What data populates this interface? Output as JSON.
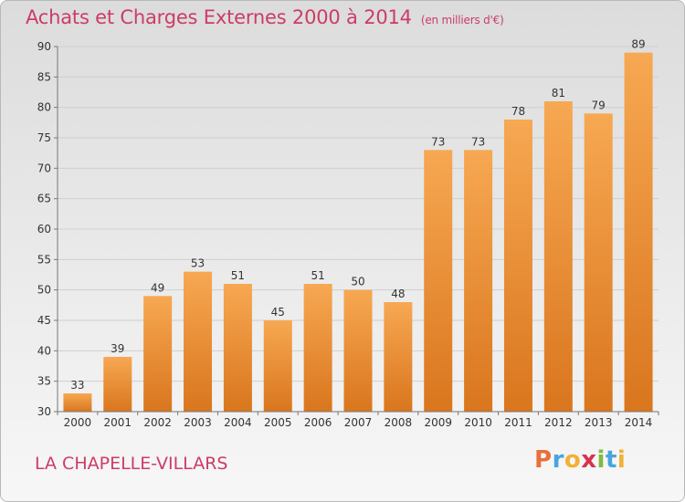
{
  "title": "Achats et Charges Externes 2000 à 2014",
  "unit_note": "(en milliers d'€)",
  "place_name": "LA CHAPELLE-VILLARS",
  "logo_text": "Proxiti",
  "colors": {
    "title": "#cc3c66",
    "bar_top": "#f7a852",
    "bar_bottom": "#d9761e",
    "grid": "#cfcfcf",
    "axis_text": "#333333"
  },
  "chart_data": {
    "type": "bar",
    "title": "Achats et Charges Externes 2000 à 2014",
    "subtitle": "(en milliers d'€)",
    "xlabel": "",
    "ylabel": "",
    "ylim": [
      30,
      90
    ],
    "yticks": [
      30,
      35,
      40,
      45,
      50,
      55,
      60,
      65,
      70,
      75,
      80,
      85,
      90
    ],
    "grid": true,
    "categories": [
      "2000",
      "2001",
      "2002",
      "2003",
      "2004",
      "2005",
      "2006",
      "2007",
      "2008",
      "2009",
      "2010",
      "2011",
      "2012",
      "2013",
      "2014"
    ],
    "values": [
      33,
      39,
      49,
      53,
      51,
      45,
      51,
      50,
      48,
      73,
      73,
      78,
      81,
      79,
      89
    ]
  }
}
